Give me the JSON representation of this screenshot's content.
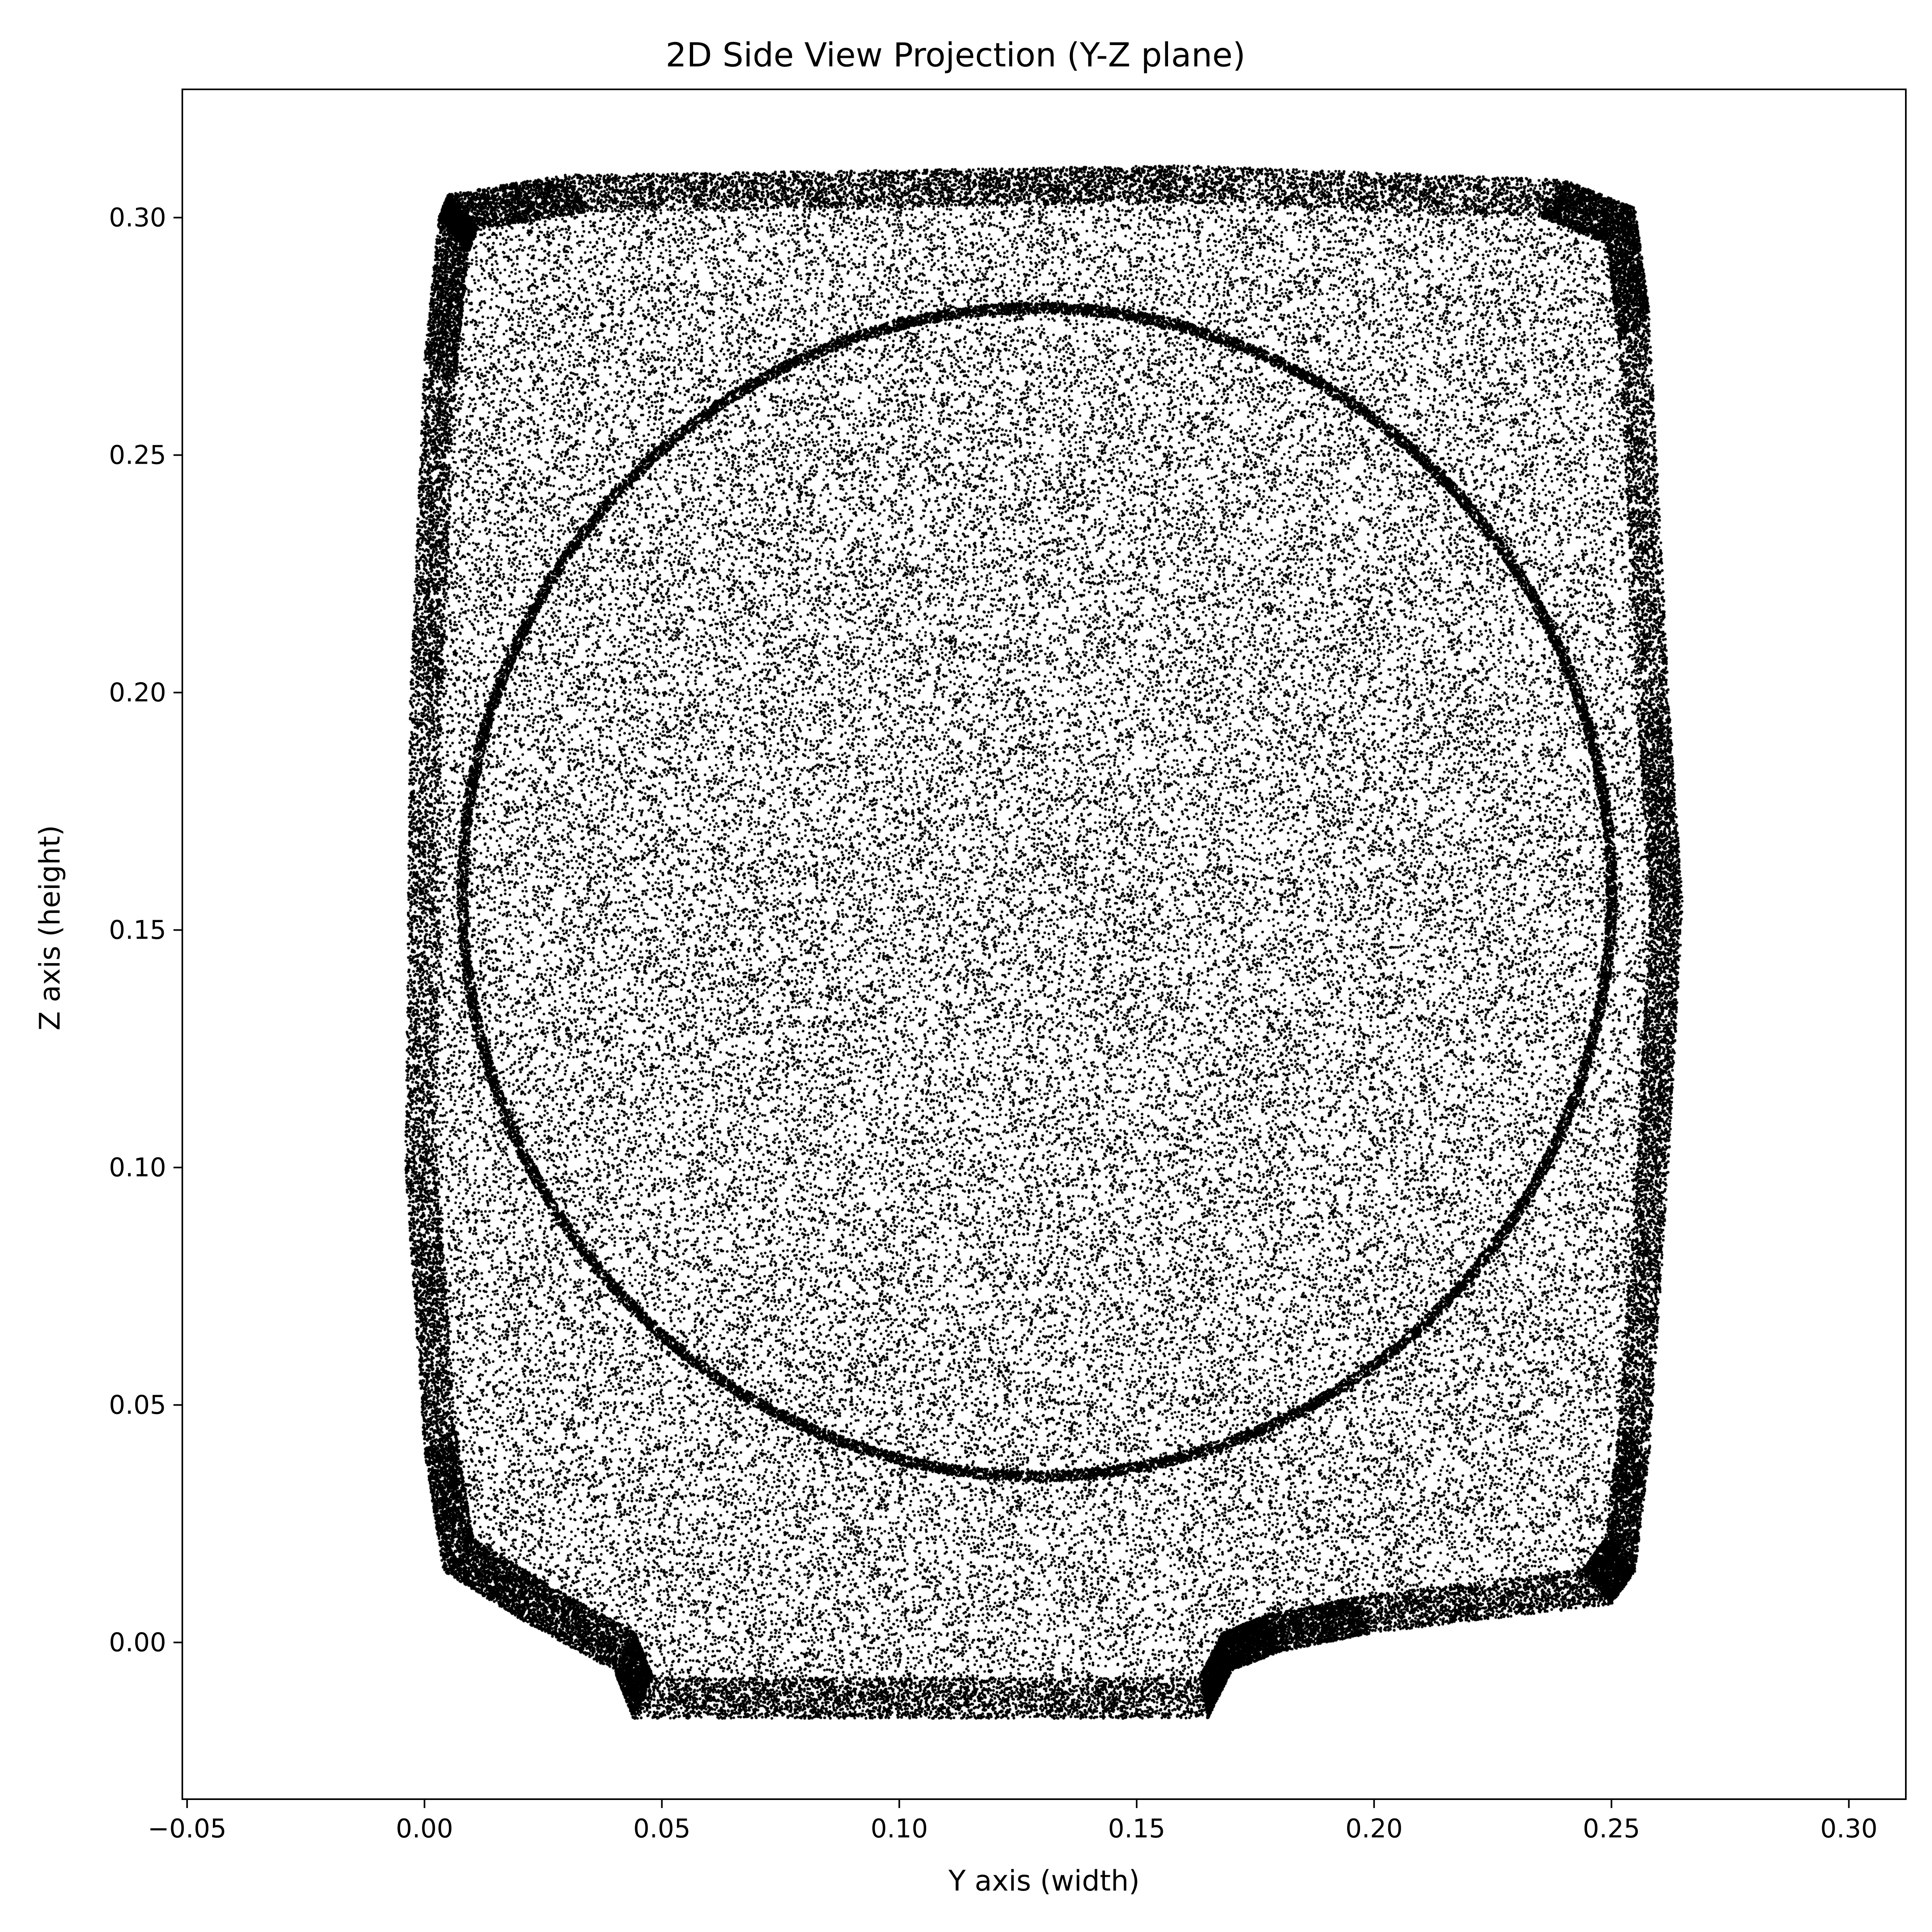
{
  "chart_data": {
    "type": "scatter",
    "title": "2D Side View Projection (Y-Z plane)",
    "xlabel": "Y axis (width)",
    "ylabel": "Z axis (height)",
    "xlim": [
      -0.051,
      0.312
    ],
    "ylim": [
      -0.033,
      0.327
    ],
    "xticks": [
      -0.05,
      0.0,
      0.05,
      0.1,
      0.15,
      0.2,
      0.25,
      0.3
    ],
    "xtick_labels": [
      "−0.05",
      "0.00",
      "0.05",
      "0.10",
      "0.15",
      "0.20",
      "0.25",
      "0.30"
    ],
    "yticks": [
      0.0,
      0.05,
      0.1,
      0.15,
      0.2,
      0.25,
      0.3
    ],
    "ytick_labels": [
      "0.00",
      "0.05",
      "0.10",
      "0.15",
      "0.20",
      "0.25",
      "0.30"
    ],
    "grid": false,
    "marker_color": "#000000",
    "series": [
      {
        "description_shape": "dense point cloud",
        "outer_outline": [
          [
            0.005,
            0.305
          ],
          [
            0.03,
            0.309
          ],
          [
            0.1,
            0.31
          ],
          [
            0.16,
            0.311
          ],
          [
            0.24,
            0.308
          ],
          [
            0.255,
            0.302
          ],
          [
            0.258,
            0.28
          ],
          [
            0.262,
            0.2
          ],
          [
            0.265,
            0.155
          ],
          [
            0.262,
            0.1
          ],
          [
            0.258,
            0.04
          ],
          [
            0.255,
            0.015
          ],
          [
            0.25,
            0.008
          ],
          [
            0.2,
            0.002
          ],
          [
            0.18,
            -0.002
          ],
          [
            0.17,
            -0.006
          ],
          [
            0.165,
            -0.016
          ],
          [
            0.1,
            -0.016
          ],
          [
            0.044,
            -0.016
          ],
          [
            0.04,
            -0.006
          ],
          [
            0.02,
            0.005
          ],
          [
            0.004,
            0.015
          ],
          [
            0.0,
            0.04
          ],
          [
            -0.004,
            0.1
          ],
          [
            -0.003,
            0.2
          ],
          [
            0.0,
            0.27
          ],
          [
            0.003,
            0.3
          ]
        ],
        "inner_ring": {
          "center": [
            0.129,
            0.158
          ],
          "radius_y": 0.121,
          "radius_z": 0.123
        },
        "point_count_approx": 150000
      }
    ]
  }
}
